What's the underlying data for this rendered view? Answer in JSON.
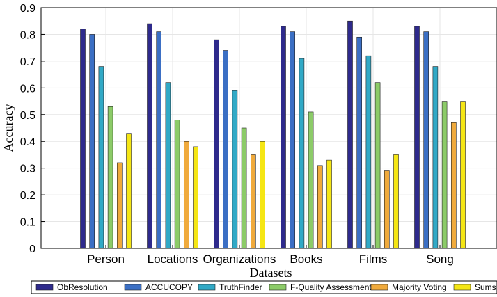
{
  "chart_data": {
    "type": "bar",
    "title": "",
    "xlabel": "Datasets",
    "ylabel": "Accuracy",
    "ylim": [
      0,
      0.9
    ],
    "yticks": [
      "0",
      "0.1",
      "0.2",
      "0.3",
      "0.4",
      "0.5",
      "0.6",
      "0.7",
      "0.8",
      "0.9"
    ],
    "grid": true,
    "legend_position": "bottom",
    "categories": [
      "Person",
      "Locations",
      "Organizations",
      "Books",
      "Films",
      "Song"
    ],
    "series": [
      {
        "name": "ObResolution",
        "color": "#2e2a8c",
        "values": [
          0.82,
          0.84,
          0.78,
          0.83,
          0.85,
          0.83
        ]
      },
      {
        "name": "ACCUCOPY",
        "color": "#3b6fc4",
        "values": [
          0.8,
          0.81,
          0.74,
          0.81,
          0.79,
          0.81
        ]
      },
      {
        "name": "TruthFinder",
        "color": "#31a9c6",
        "values": [
          0.68,
          0.62,
          0.59,
          0.71,
          0.72,
          0.68
        ]
      },
      {
        "name": "F-Quality Assessment",
        "color": "#8ccb68",
        "values": [
          0.53,
          0.48,
          0.45,
          0.51,
          0.62,
          0.55
        ]
      },
      {
        "name": "Majority Voting",
        "color": "#f0aa3c",
        "values": [
          0.32,
          0.4,
          0.35,
          0.31,
          0.29,
          0.47
        ]
      },
      {
        "name": "Sums",
        "color": "#f5e614",
        "values": [
          0.43,
          0.38,
          0.4,
          0.33,
          0.35,
          0.55
        ]
      }
    ]
  }
}
